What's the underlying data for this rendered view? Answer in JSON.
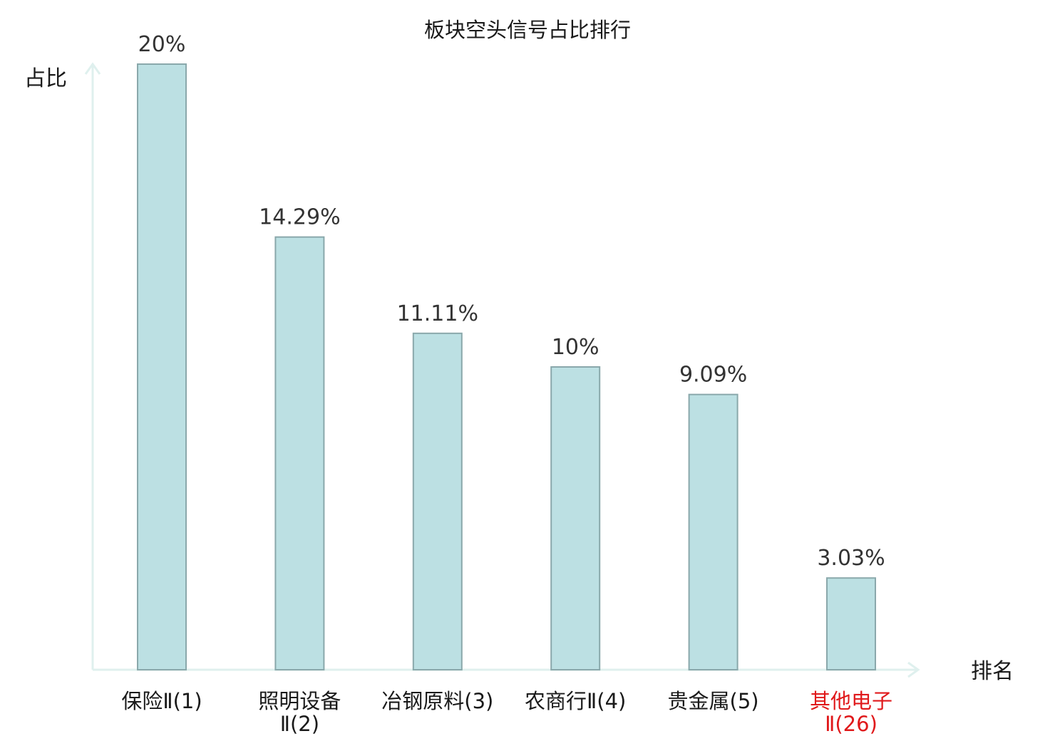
{
  "chart_data": {
    "type": "bar",
    "title": "板块空头信号占比排行",
    "ylabel": "占比",
    "xlabel": "排名",
    "ylim": [
      0,
      20
    ],
    "categories": [
      [
        "保险Ⅱ(1)"
      ],
      [
        "照明设备",
        "Ⅱ(2)"
      ],
      [
        "冶钢原料(3)"
      ],
      [
        "农商行Ⅱ(4)"
      ],
      [
        "贵金属(5)"
      ],
      [
        "其他电子",
        "Ⅱ(26)"
      ]
    ],
    "values": [
      20,
      14.29,
      11.11,
      10,
      9.09,
      3.03
    ],
    "value_labels": [
      "20%",
      "14.29%",
      "11.11%",
      "10%",
      "9.09%",
      "3.03%"
    ],
    "highlight_index": 5,
    "grid": false
  },
  "colors": {
    "bar_fill": "#bce0e3",
    "bar_stroke": "#8aa8ab",
    "axis": "#dff0ee",
    "highlight": "#e0191b"
  }
}
